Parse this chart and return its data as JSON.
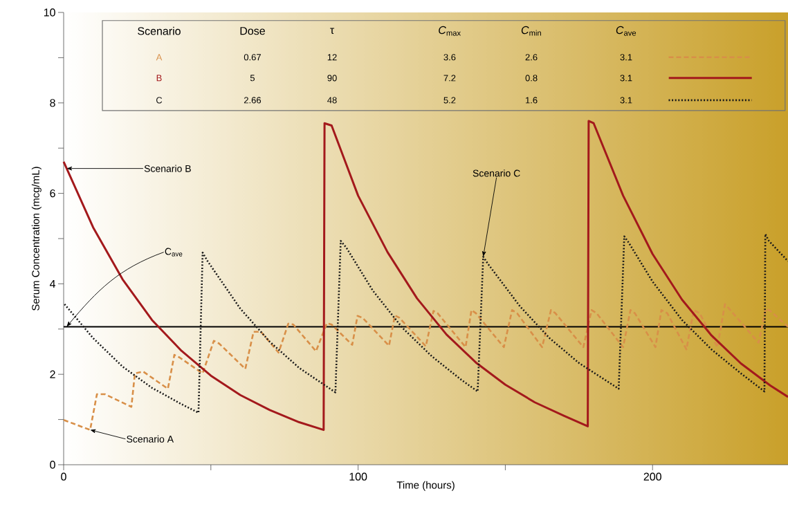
{
  "chart_data": {
    "type": "line",
    "xlabel": "Time (hours)",
    "ylabel": "Serum Concentration (mcg/mL)",
    "xlim": [
      0,
      246
    ],
    "ylim": [
      0,
      10
    ],
    "xticks": [
      0,
      {
        "value": 50,
        "label": null
      },
      100,
      {
        "value": 150,
        "label": null
      },
      200
    ],
    "yticks": [
      0,
      {
        "value": 1,
        "label": null
      },
      2,
      {
        "value": 3,
        "label": null
      },
      4,
      {
        "value": 5,
        "label": null
      },
      6,
      {
        "value": 7,
        "label": null
      },
      8,
      {
        "value": 9,
        "label": null
      },
      10
    ],
    "legend": "top",
    "series": [
      {
        "name": "A",
        "color": "#d88f48",
        "line_style": "dashed",
        "x": [
          0,
          9,
          11.3,
          14,
          23,
          24.2,
          27,
          35.4,
          37.6,
          39.4,
          47.2,
          51,
          52.8,
          61.7,
          64.5,
          67,
          73,
          76.3,
          78,
          85.7,
          89.4,
          91,
          98,
          99.8,
          101.5,
          110.5,
          112.5,
          114,
          123,
          125.6,
          127,
          136.5,
          138.5,
          140,
          149.5,
          152.3,
          154,
          162.5,
          165.5,
          167,
          176.5,
          179.3,
          181,
          190,
          192.5,
          194,
          201,
          203,
          205,
          211.5,
          214,
          216,
          222,
          224.6,
          226,
          236,
          238.5,
          240,
          246
        ],
        "values": [
          0.99,
          0.77,
          1.56,
          1.56,
          1.28,
          2.02,
          2.06,
          1.68,
          2.43,
          2.37,
          2.02,
          2.74,
          2.68,
          2.12,
          2.94,
          2.94,
          2.48,
          3.12,
          3.1,
          2.51,
          3.13,
          3.1,
          2.65,
          3.29,
          3.25,
          2.63,
          3.3,
          3.25,
          2.62,
          3.4,
          3.35,
          2.6,
          3.42,
          3.35,
          2.6,
          3.42,
          3.35,
          2.6,
          3.42,
          3.35,
          2.6,
          3.42,
          3.35,
          2.6,
          3.42,
          3.35,
          2.6,
          3.42,
          3.35,
          2.55,
          3.42,
          3.35,
          2.6,
          3.55,
          3.45,
          2.7,
          3.45,
          3.4,
          3.05
        ]
      },
      {
        "name": "B",
        "color": "#a3191c",
        "line_style": "solid",
        "x": [
          0,
          10,
          20,
          30,
          40,
          50,
          60,
          70,
          80,
          88.3,
          88.6,
          91,
          100,
          110,
          120,
          130,
          140,
          150,
          160,
          170,
          178,
          178.3,
          180,
          190,
          200,
          210,
          220,
          230,
          240,
          246
        ],
        "values": [
          6.7,
          5.25,
          4.1,
          3.2,
          2.52,
          1.97,
          1.54,
          1.21,
          0.94,
          0.77,
          7.55,
          7.5,
          5.95,
          4.7,
          3.68,
          2.88,
          2.26,
          1.77,
          1.38,
          1.08,
          0.85,
          7.6,
          7.55,
          5.95,
          4.66,
          3.65,
          2.86,
          2.24,
          1.75,
          1.5
        ]
      },
      {
        "name": "C",
        "color": "#1a1a1a",
        "line_style": "dotted",
        "x": [
          0.3,
          10,
          20,
          30,
          40,
          45.8,
          47.2,
          48.8,
          60,
          70,
          80,
          92.3,
          94.1,
          96,
          105,
          115,
          125,
          135,
          140.6,
          142.5,
          144,
          155,
          165,
          175,
          188.5,
          190.4,
          192,
          200,
          210,
          220,
          230,
          238,
          238.3,
          239.5,
          246
        ],
        "values": [
          3.55,
          2.8,
          2.17,
          1.7,
          1.34,
          1.15,
          4.69,
          4.51,
          3.45,
          2.72,
          2.14,
          1.6,
          4.95,
          4.8,
          3.85,
          3.03,
          2.4,
          1.88,
          1.62,
          4.6,
          4.45,
          3.5,
          2.8,
          2.25,
          1.68,
          5.05,
          4.9,
          4.05,
          3.2,
          2.55,
          2.02,
          1.62,
          5.1,
          4.95,
          4.5
        ]
      }
    ],
    "ref_lines": [
      {
        "axis": "y",
        "value": 3.05,
        "color": "#000000"
      }
    ],
    "annotations": [
      {
        "text": "Scenario B",
        "x": 1,
        "y": 6.55
      },
      {
        "text": "C$_{ave}$",
        "x": 1,
        "y": 3.05
      },
      {
        "text": "Scenario C",
        "x": 142.5,
        "y": 4.6
      },
      {
        "text": "Scenario A",
        "x": 9,
        "y": 0.77
      },
      "Scenario",
      "Dose",
      "τ",
      "*C*$_{max}$",
      "*C*$_{min}$",
      "*C*$_{ave}$",
      "0.67",
      "12",
      "3.6",
      "2.6",
      "3.1",
      "5",
      "90",
      "7.2",
      "0.8",
      "3.1",
      "2.66",
      "48",
      "5.2",
      "1.6",
      "3.1"
    ]
  }
}
